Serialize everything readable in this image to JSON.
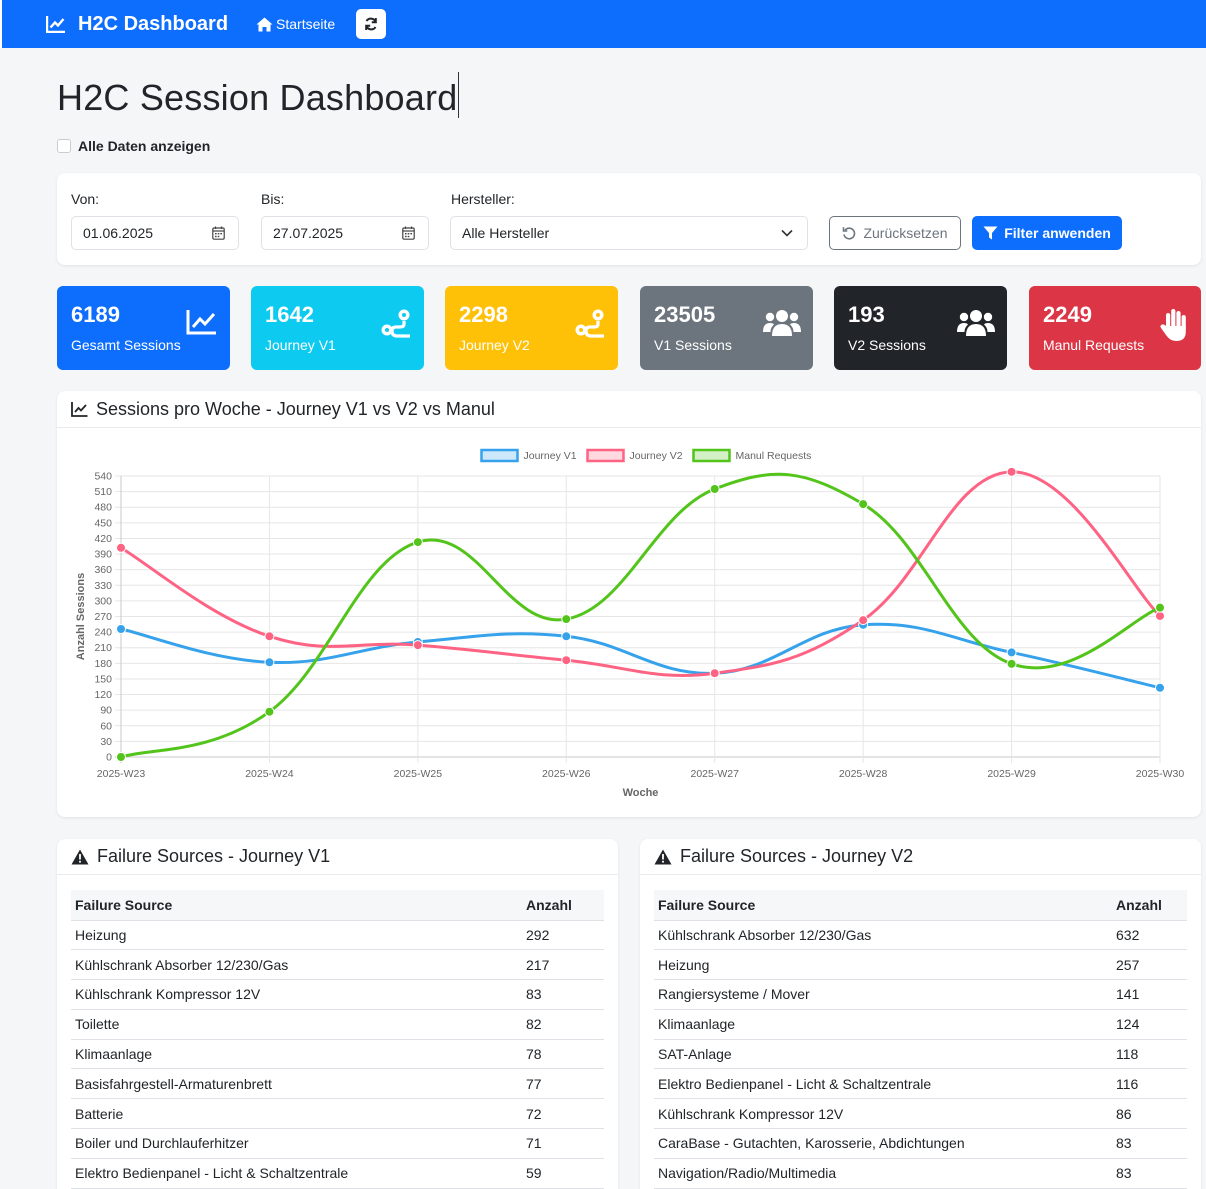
{
  "navbar": {
    "brand": "H2C Dashboard",
    "home": "Startseite"
  },
  "page": {
    "title": "H2C Session Dashboard",
    "show_all_label": "Alle Daten anzeigen"
  },
  "filter": {
    "from_label": "Von:",
    "from_value": "01.06.2025",
    "to_label": "Bis:",
    "to_value": "27.07.2025",
    "maker_label": "Hersteller:",
    "maker_value": "Alle Hersteller",
    "reset_label": "Zurücksetzen",
    "apply_label": "Filter anwenden"
  },
  "stats": [
    {
      "value": "6189",
      "label": "Gesamt Sessions",
      "color": "#0d6efd",
      "icon": "chart-line-icon"
    },
    {
      "value": "1642",
      "label": "Journey V1",
      "color": "#0dcaf0",
      "icon": "route-icon"
    },
    {
      "value": "2298",
      "label": "Journey V2",
      "color": "#ffc107",
      "icon": "route-icon"
    },
    {
      "value": "23505",
      "label": "V1 Sessions",
      "color": "#6c757d",
      "icon": "users-icon"
    },
    {
      "value": "193",
      "label": "V2 Sessions",
      "color": "#212529",
      "icon": "users-icon"
    },
    {
      "value": "2249",
      "label": "Manul Requests",
      "color": "#dc3545",
      "icon": "hand-icon"
    }
  ],
  "chart_title": "Sessions pro Woche - Journey V1 vs V2 vs Manul",
  "chart_data": {
    "type": "line",
    "categories": [
      "2025-W23",
      "2025-W24",
      "2025-W25",
      "2025-W26",
      "2025-W27",
      "2025-W28",
      "2025-W29",
      "2025-W30"
    ],
    "series": [
      {
        "name": "Journey V1",
        "color": "#36a2eb",
        "values": [
          246,
          182,
          221,
          232,
          161,
          254,
          201,
          133
        ]
      },
      {
        "name": "Journey V2",
        "color": "#ff6384",
        "values": [
          402,
          232,
          215,
          186,
          161,
          263,
          548,
          271
        ]
      },
      {
        "name": "Manul Requests",
        "color": "#52c41a",
        "values": [
          0,
          87,
          413,
          265,
          515,
          486,
          179,
          287
        ]
      }
    ],
    "xlabel": "Woche",
    "ylabel": "Anzahl Sessions",
    "ylim": [
      0,
      540
    ],
    "yticks": [
      0,
      30,
      60,
      90,
      120,
      150,
      180,
      210,
      240,
      270,
      300,
      330,
      360,
      390,
      420,
      450,
      480,
      510,
      540
    ],
    "legend": "top",
    "grid": true
  },
  "table_v1": {
    "title": "Failure Sources - Journey V1",
    "headers": [
      "Failure Source",
      "Anzahl"
    ],
    "rows": [
      [
        "Heizung",
        "292"
      ],
      [
        "Kühlschrank Absorber 12/230/Gas",
        "217"
      ],
      [
        "Kühlschrank Kompressor 12V",
        "83"
      ],
      [
        "Toilette",
        "82"
      ],
      [
        "Klimaanlage",
        "78"
      ],
      [
        "Basisfahrgestell-Armaturenbrett",
        "77"
      ],
      [
        "Batterie",
        "72"
      ],
      [
        "Boiler und Durchlauferhitzer",
        "71"
      ],
      [
        "Elektro Bedienpanel - Licht & Schaltzentrale",
        "59"
      ]
    ]
  },
  "table_v2": {
    "title": "Failure Sources - Journey V2",
    "headers": [
      "Failure Source",
      "Anzahl"
    ],
    "rows": [
      [
        "Kühlschrank Absorber 12/230/Gas",
        "632"
      ],
      [
        "Heizung",
        "257"
      ],
      [
        "Rangiersysteme / Mover",
        "141"
      ],
      [
        "Klimaanlage",
        "124"
      ],
      [
        "SAT-Anlage",
        "118"
      ],
      [
        "Elektro Bedienpanel - Licht & Schaltzentrale",
        "116"
      ],
      [
        "Kühlschrank Kompressor 12V",
        "86"
      ],
      [
        "CaraBase - Gutachten, Karosserie, Abdichtungen",
        "83"
      ],
      [
        "Navigation/Radio/Multimedia",
        "83"
      ]
    ]
  }
}
